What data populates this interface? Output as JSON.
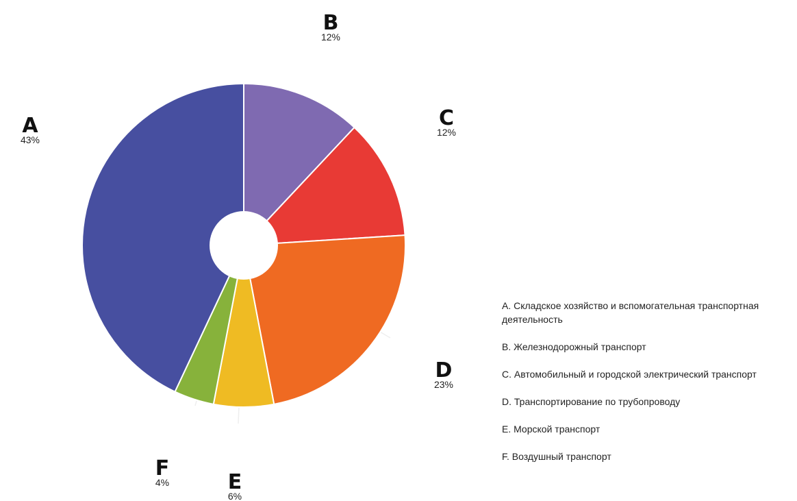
{
  "chart_data": {
    "type": "pie",
    "style": "donut",
    "slices": [
      {
        "key": "B",
        "label": "B",
        "value_label": "12%",
        "value": 12,
        "color": "#7f6ab1",
        "legend": "B. Железнодорожный транспорт"
      },
      {
        "key": "C",
        "label": "C",
        "value_label": "12%",
        "value": 12,
        "color": "#e83a35",
        "legend": "C. Автомобильный и городской электрический транспорт"
      },
      {
        "key": "D",
        "label": "D",
        "value_label": "23%",
        "value": 23,
        "color": "#ef6a22",
        "legend": "D. Транспортирование по трубопроводу"
      },
      {
        "key": "E",
        "label": "E",
        "value_label": "6%",
        "value": 6,
        "color": "#efbb23",
        "legend": "E. Морской транспорт"
      },
      {
        "key": "F",
        "label": "F",
        "value_label": "4%",
        "value": 4,
        "color": "#87b23b",
        "legend": "F. Воздушный транспорт"
      },
      {
        "key": "A",
        "label": "A",
        "value_label": "43%",
        "value": 43,
        "color": "#474fa0",
        "legend": "A. Складское хозяйство и вспомогательная транспортная деятельность"
      }
    ],
    "legend_order": [
      "A",
      "B",
      "C",
      "D",
      "E",
      "F"
    ],
    "legend_position": "right"
  }
}
